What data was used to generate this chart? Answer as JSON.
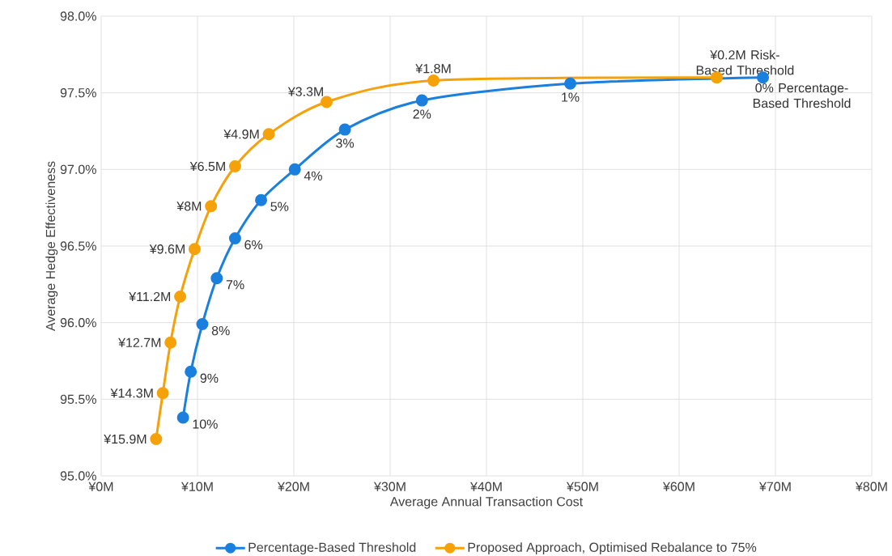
{
  "chart_data": {
    "type": "line",
    "xlabel": "Average Annual Transaction Cost",
    "ylabel": "Average Hedge Effectiveness",
    "xlim": [
      0,
      80
    ],
    "ylim": [
      95.0,
      98.0
    ],
    "xticks": [
      {
        "value": 0,
        "label": "¥0M"
      },
      {
        "value": 10,
        "label": "¥10M"
      },
      {
        "value": 20,
        "label": "¥20M"
      },
      {
        "value": 30,
        "label": "¥30M"
      },
      {
        "value": 40,
        "label": "¥40M"
      },
      {
        "value": 50,
        "label": "¥50M"
      },
      {
        "value": 60,
        "label": "¥60M"
      },
      {
        "value": 70,
        "label": "¥70M"
      },
      {
        "value": 80,
        "label": "¥80M"
      }
    ],
    "yticks": [
      {
        "value": 95.0,
        "label": "95.0%"
      },
      {
        "value": 95.5,
        "label": "95.5%"
      },
      {
        "value": 96.0,
        "label": "96.0%"
      },
      {
        "value": 96.5,
        "label": "96.5%"
      },
      {
        "value": 97.0,
        "label": "97.0%"
      },
      {
        "value": 97.5,
        "label": "97.5%"
      },
      {
        "value": 98.0,
        "label": "98.0%"
      }
    ],
    "grid": true,
    "legend": "bottom",
    "marker": "circle",
    "line_style": "solid",
    "series": [
      {
        "name": "Percentage-Based Threshold",
        "color": "#1a7fdd",
        "x": [
          8.5,
          9.3,
          10.5,
          12.0,
          13.9,
          16.6,
          20.1,
          25.3,
          33.3,
          48.7,
          68.7
        ],
        "values": [
          95.38,
          95.68,
          95.99,
          96.29,
          96.55,
          96.8,
          97.0,
          97.26,
          97.45,
          97.56,
          97.6
        ]
      },
      {
        "name": "Proposed Approach, Optimised Rebalance to 75%",
        "color": "#f5a20a",
        "x": [
          5.7,
          6.4,
          7.2,
          8.2,
          9.7,
          11.4,
          13.9,
          17.4,
          23.4,
          34.5,
          63.9
        ],
        "values": [
          95.24,
          95.54,
          95.87,
          96.17,
          96.48,
          96.76,
          97.02,
          97.23,
          97.44,
          97.58,
          97.6
        ]
      }
    ],
    "annotations": [
      {
        "text": "10%",
        "x": 8.5,
        "y": 95.38
      },
      {
        "text": "9%",
        "x": 9.3,
        "y": 95.68
      },
      {
        "text": "8%",
        "x": 10.5,
        "y": 95.99
      },
      {
        "text": "7%",
        "x": 12.0,
        "y": 96.29
      },
      {
        "text": "6%",
        "x": 13.9,
        "y": 96.55
      },
      {
        "text": "5%",
        "x": 16.6,
        "y": 96.8
      },
      {
        "text": "4%",
        "x": 20.1,
        "y": 97.0
      },
      {
        "text": "3%",
        "x": 25.3,
        "y": 97.26
      },
      {
        "text": "2%",
        "x": 33.3,
        "y": 97.45
      },
      {
        "text": "1%",
        "x": 48.7,
        "y": 97.56
      },
      {
        "text": "0% Percentage-Based Threshold",
        "x": 68.7,
        "y": 97.6
      },
      {
        "text": "¥15.9M",
        "x": 5.7,
        "y": 95.24
      },
      {
        "text": "¥14.3M",
        "x": 6.4,
        "y": 95.54
      },
      {
        "text": "¥12.7M",
        "x": 7.2,
        "y": 95.87
      },
      {
        "text": "¥11.2M",
        "x": 8.2,
        "y": 96.17
      },
      {
        "text": "¥9.6M",
        "x": 9.7,
        "y": 96.48
      },
      {
        "text": "¥8M",
        "x": 11.4,
        "y": 96.76
      },
      {
        "text": "¥6.5M",
        "x": 13.9,
        "y": 97.02
      },
      {
        "text": "¥4.9M",
        "x": 17.4,
        "y": 97.23
      },
      {
        "text": "¥3.3M",
        "x": 23.4,
        "y": 97.44
      },
      {
        "text": "¥1.8M",
        "x": 34.5,
        "y": 97.58
      },
      {
        "text": "¥0.2M Risk-Based Threshold",
        "x": 63.9,
        "y": 97.6
      }
    ]
  }
}
